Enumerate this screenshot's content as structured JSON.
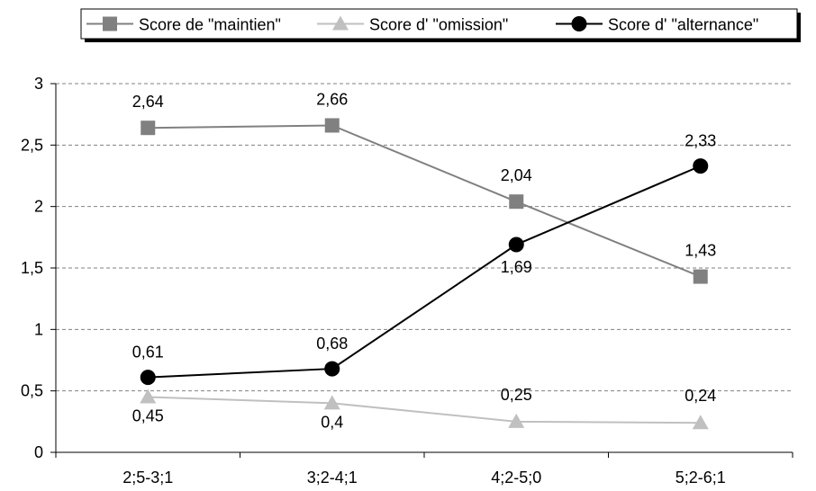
{
  "chart_data": {
    "type": "line",
    "categories": [
      "2;5-3;1",
      "3;2-4;1",
      "4;2-5;0",
      "5;2-6;1"
    ],
    "series": [
      {
        "name": "Score de \"maintien\"",
        "values": [
          2.64,
          2.66,
          2.04,
          1.43
        ],
        "labels": [
          "2,64",
          "2,66",
          "2,04",
          "1,43"
        ],
        "color": "#808080",
        "marker": "square"
      },
      {
        "name": "Score d' \"omission\"",
        "values": [
          0.45,
          0.4,
          0.25,
          0.24
        ],
        "labels": [
          "0,45",
          "0,4",
          "0,25",
          "0,24"
        ],
        "color": "#c0c0c0",
        "marker": "triangle"
      },
      {
        "name": "Score d' \"alternance\"",
        "values": [
          0.61,
          0.68,
          1.69,
          2.33
        ],
        "labels": [
          "0,61",
          "0,68",
          "1,69",
          "2,33"
        ],
        "color": "#000000",
        "marker": "circle"
      }
    ],
    "ylim": [
      0,
      3
    ],
    "yticks": [
      0,
      0.5,
      1,
      1.5,
      2,
      2.5,
      3
    ],
    "ytick_labels": [
      "0",
      "0,5",
      "1",
      "1,5",
      "2",
      "2,5",
      "3"
    ],
    "grid": true,
    "legend_position": "top-right"
  }
}
